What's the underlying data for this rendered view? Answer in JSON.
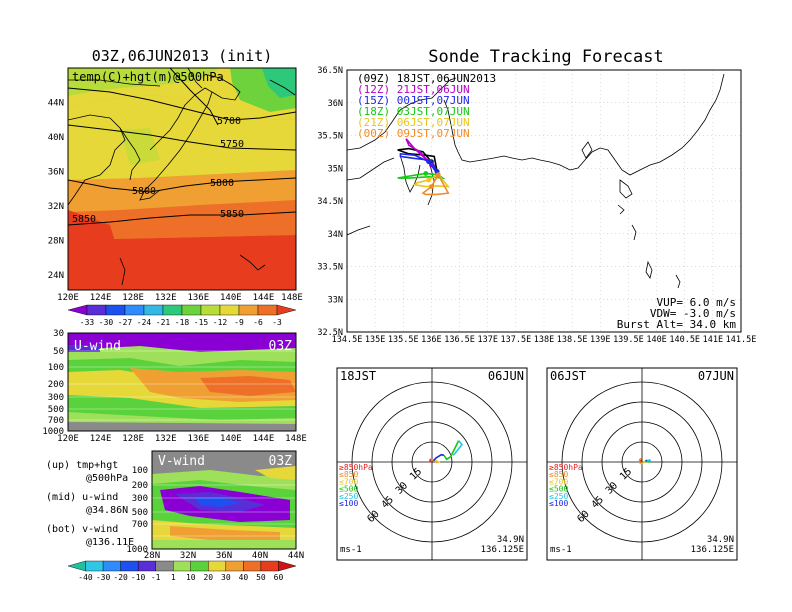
{
  "chart_data": [
    {
      "type": "heatmap",
      "title": "03Z,06JUN2013 (init)",
      "panel_label": "temp(C)+hgt(m)@500hPa",
      "x_ticks": [
        "120E",
        "124E",
        "128E",
        "132E",
        "136E",
        "140E",
        "144E",
        "148E"
      ],
      "y_ticks": [
        "24N",
        "28N",
        "32N",
        "36N",
        "40N",
        "44N"
      ],
      "contour_labels": [
        "5700",
        "5750",
        "5800",
        "5800",
        "5850",
        "5850"
      ],
      "colorbar_labels": [
        "-33",
        "-30",
        "-27",
        "-24",
        "-21",
        "-18",
        "-15",
        "-12",
        "-9",
        "-6",
        "-3"
      ],
      "colorbar_colors": [
        "#8a00d4",
        "#5a2ed6",
        "#1e4ff0",
        "#2f8cff",
        "#33b8e6",
        "#2ec87a",
        "#6ed23c",
        "#b8dc3a",
        "#e6d838",
        "#f0a032",
        "#ee7028",
        "#e83c1e"
      ]
    },
    {
      "type": "heatmap",
      "title": "U-wind",
      "time_label": "03Z",
      "y_ticks": [
        "30",
        "50",
        "100",
        "200",
        "300",
        "500",
        "700",
        "1000"
      ],
      "x_ticks": [
        "120E",
        "124E",
        "128E",
        "132E",
        "136E",
        "140E",
        "144E",
        "148E"
      ]
    },
    {
      "type": "heatmap",
      "title": "V-wind",
      "time_label": "03Z",
      "y_ticks": [
        "100",
        "200",
        "300",
        "500",
        "700",
        "1000"
      ],
      "x_ticks": [
        "28N",
        "32N",
        "36N",
        "40N",
        "44N"
      ],
      "colorbar_labels": [
        "-40",
        "-30",
        "-20",
        "-10",
        "-1",
        "1",
        "10",
        "20",
        "30",
        "40",
        "50",
        "60"
      ],
      "colorbar_colors": [
        "#20c0a0",
        "#2ec8e6",
        "#2f8cff",
        "#1e4ff0",
        "#5a2ed6",
        "#8a8a8a",
        "#9ee05a",
        "#5ad23c",
        "#e6d838",
        "#f0a032",
        "#ee7028",
        "#e83c1e",
        "#d01414"
      ]
    },
    {
      "type": "line",
      "title": "Sonde Tracking Forecast",
      "x_ticks": [
        "134.5E",
        "135E",
        "135.5E",
        "136E",
        "136.5E",
        "137E",
        "137.5E",
        "138E",
        "138.5E",
        "139E",
        "139.5E",
        "140E",
        "140.5E",
        "141E",
        "141.5E"
      ],
      "y_ticks": [
        "36.5N",
        "36N",
        "35.5N",
        "35N",
        "34.5N",
        "34N",
        "33.5N",
        "33N",
        "32.5N"
      ],
      "xlim": [
        134.5,
        141.5
      ],
      "ylim": [
        32.5,
        36.5
      ],
      "series": [
        {
          "name": "(09Z)  18JST,06JUN2013",
          "color": "#000000",
          "lon": [
            136.12,
            136.0,
            135.85,
            135.6,
            135.4,
            135.6,
            135.9,
            136.05,
            136.1
          ],
          "lat": [
            34.9,
            35.1,
            35.25,
            35.3,
            35.28,
            35.22,
            35.2,
            35.18,
            34.95
          ]
        },
        {
          "name": "(12Z)  21JST,06JUN",
          "color": "#b400c8",
          "lon": [
            136.12,
            136.0,
            135.8,
            135.6,
            135.55,
            135.7,
            135.95,
            136.1
          ],
          "lat": [
            34.9,
            35.05,
            35.25,
            35.35,
            35.45,
            35.3,
            35.1,
            34.95
          ]
        },
        {
          "name": "(15Z)  00JST,07JUN",
          "color": "#1e28e6",
          "lon": [
            136.12,
            135.95,
            135.7,
            135.45,
            135.45,
            135.7,
            136.0,
            136.1
          ],
          "lat": [
            34.9,
            35.1,
            35.2,
            35.22,
            35.18,
            35.15,
            35.12,
            34.95
          ]
        },
        {
          "name": "(18Z)  03JST,07JUN",
          "color": "#14c814",
          "lon": [
            136.12,
            135.9,
            135.6,
            135.4,
            135.6,
            135.95,
            136.2,
            136.12
          ],
          "lat": [
            34.9,
            34.92,
            34.88,
            34.85,
            34.85,
            34.87,
            34.85,
            34.9
          ]
        },
        {
          "name": "(21Z)  06JST,07JUN",
          "color": "#e6c81e",
          "lon": [
            136.12,
            135.95,
            135.75,
            135.7,
            135.9,
            136.1,
            136.3,
            136.12
          ],
          "lat": [
            34.9,
            34.82,
            34.78,
            34.75,
            34.72,
            34.73,
            34.72,
            34.9
          ]
        },
        {
          "name": "(00Z)  09JST,07JUN",
          "color": "#f08c28",
          "lon": [
            136.12,
            136.0,
            135.85,
            135.9,
            136.1,
            136.3,
            136.12
          ],
          "lat": [
            34.9,
            34.72,
            34.62,
            34.6,
            34.6,
            34.62,
            34.9
          ]
        }
      ],
      "annotations": [
        "VUP=  6.0  m/s",
        "VDW= -3.0  m/s",
        "Burst Alt= 34.0  km"
      ]
    },
    {
      "type": "line",
      "title_left": "18JST",
      "title_right": "06JUN",
      "ring_labels": [
        "15",
        "30",
        "45",
        "60"
      ],
      "level_labels": [
        "≥850hPa",
        "≤850",
        "≤700",
        "≤500",
        "≤250",
        "≤100"
      ],
      "level_colors": [
        "#e61e1e",
        "#f08c28",
        "#e6c81e",
        "#14c814",
        "#1ec8e6",
        "#1e28e6"
      ],
      "unit_label": "ms-1",
      "location": [
        "34.9N",
        "136.125E"
      ],
      "hodograph": [
        {
          "color": "#e61e1e",
          "u": [
            0,
            -1.2,
            -1.5,
            -0.8
          ],
          "v": [
            0,
            0.5,
            1.5,
            2.2
          ]
        },
        {
          "color": "#f08c28",
          "u": [
            -0.8,
            0.5,
            2.5,
            4.0
          ],
          "v": [
            2.2,
            1.2,
            0.5,
            -0.5
          ]
        },
        {
          "color": "#e6c81e",
          "u": [
            4.0,
            5.0,
            3.0,
            1.0
          ],
          "v": [
            -0.5,
            0.0,
            1.0,
            1.0
          ]
        },
        {
          "color": "#1e28e6",
          "u": [
            1.0,
            3.0,
            7.0,
            9.0
          ],
          "v": [
            1.0,
            3.0,
            5.5,
            5.0
          ]
        },
        {
          "color": "#14c814",
          "u": [
            9.0,
            11.0,
            14.0,
            17.0,
            20.0
          ],
          "v": [
            5.0,
            2.0,
            4.0,
            10.0,
            16.0
          ]
        },
        {
          "color": "#1ec8e6",
          "u": [
            20.0,
            22.5,
            16.0
          ],
          "v": [
            16.0,
            13.0,
            5.0
          ]
        }
      ]
    },
    {
      "type": "line",
      "title_left": "06JST",
      "title_right": "07JUN",
      "ring_labels": [
        "15",
        "30",
        "45",
        "60"
      ],
      "level_labels": [
        "≥850hPa",
        "≤850",
        "≤700",
        "≤500",
        "≤250",
        "≤100"
      ],
      "level_colors": [
        "#e61e1e",
        "#f08c28",
        "#e6c81e",
        "#14c814",
        "#1ec8e6",
        "#1e28e6"
      ],
      "unit_label": "ms-1",
      "location": [
        "34.9N",
        "136.125E"
      ],
      "hodograph": [
        {
          "color": "#e61e1e",
          "u": [
            0,
            -0.8,
            -1.2,
            -0.5
          ],
          "v": [
            0,
            0.8,
            1.8,
            2.4
          ]
        },
        {
          "color": "#f08c28",
          "u": [
            -0.5,
            -1.5,
            -2.0,
            -1.0
          ],
          "v": [
            2.4,
            2.0,
            0.5,
            -1.5
          ]
        },
        {
          "color": "#e6c81e",
          "u": [
            -1.0,
            1.0,
            2.5
          ],
          "v": [
            -1.5,
            -0.5,
            0.5
          ]
        },
        {
          "color": "#1e28e6",
          "u": [
            2.5,
            4.0,
            3.0
          ],
          "v": [
            0.5,
            1.5,
            0.5
          ]
        },
        {
          "color": "#14c814",
          "u": [
            3.0,
            5.0,
            6.5
          ],
          "v": [
            0.5,
            0.0,
            0.8
          ]
        },
        {
          "color": "#1ec8e6",
          "u": [
            6.5,
            5.5,
            4.0
          ],
          "v": [
            0.8,
            1.5,
            0.6
          ]
        }
      ]
    }
  ],
  "legend_text": {
    "up": "(up) tmp+hgt",
    "up_sub": "@500hPa",
    "mid": "(mid) u-wind",
    "mid_sub": "@34.86N",
    "bot": "(bot) v-wind",
    "bot_sub": "@136.11E"
  }
}
